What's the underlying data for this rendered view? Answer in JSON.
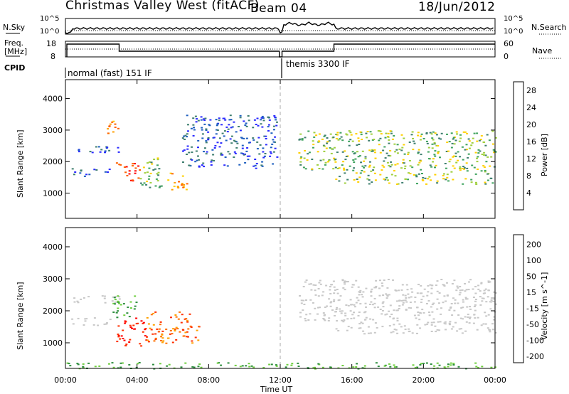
{
  "header": {
    "station": "Christmas Valley West (fitACF)",
    "beam": "Beam 04",
    "date": "18/Jun/2012"
  },
  "left_labels": {
    "nsky": "N.Sky",
    "freq": "Freq.",
    "mhz": "[MHz]",
    "cpid": "CPID",
    "nsky_ticks": [
      "10^5",
      "10^0"
    ],
    "freq_ticks": [
      "18",
      "8"
    ]
  },
  "right_labels": {
    "nsearch": "N.Search",
    "nave": "Nave",
    "nsearch_ticks": [
      "10^5",
      "10^0"
    ],
    "nave_ticks": [
      "60",
      "0"
    ]
  },
  "cpid_modes": [
    {
      "label": "normal (fast) 151 IF",
      "start_hour": 0,
      "end_hour": 12
    },
    {
      "label": "themis 3300 IF",
      "start_hour": 12,
      "end_hour": 24
    }
  ],
  "colors": {
    "power_scale": [
      "#2a2aff",
      "#1f5fbf",
      "#3f7f6f",
      "#3fa35f",
      "#9fcf3f",
      "#ffd000",
      "#ff9f00",
      "#ff6000",
      "#ff0000"
    ],
    "velocity_scale": [
      "#1f1fc8",
      "#1f5fbf",
      "#2f8f3f",
      "#6fcf3f",
      "#c8c8c8",
      "#ffa000",
      "#ff7000",
      "#ff3000",
      "#ff0000"
    ]
  },
  "chart_data": [
    {
      "type": "heatmap",
      "name_panel": "power",
      "xlabel": "Time UT",
      "ylabel": "Slant Range [km]",
      "x_ticks": [
        "00:00",
        "04:00",
        "08:00",
        "12:00",
        "16:00",
        "20:00",
        "00:00"
      ],
      "y_ticks": [
        1000,
        2000,
        3000,
        4000
      ],
      "ylim": [
        200,
        4600
      ],
      "colorbar_label": "Power [dB]",
      "colorbar_ticks": [
        4,
        8,
        12,
        16,
        20,
        24,
        28
      ],
      "colorbar_range": [
        0,
        30
      ],
      "regions": [
        {
          "t0": 0.3,
          "t1": 3.0,
          "r0": 2250,
          "r1": 2500,
          "level": "low"
        },
        {
          "t0": 0.3,
          "t1": 2.5,
          "r0": 1550,
          "r1": 1800,
          "level": "low"
        },
        {
          "t0": 2.3,
          "t1": 2.9,
          "r0": 2500,
          "r1": 3300,
          "level": "high"
        },
        {
          "t0": 2.8,
          "t1": 4.2,
          "r0": 1400,
          "r1": 2000,
          "level": "max"
        },
        {
          "t0": 4.0,
          "t1": 5.4,
          "r0": 1200,
          "r1": 2200,
          "level": "mid"
        },
        {
          "t0": 5.5,
          "t1": 6.8,
          "r0": 1100,
          "r1": 1700,
          "level": "high"
        },
        {
          "t0": 6.5,
          "t1": 11.8,
          "r0": 1800,
          "r1": 3500,
          "level": "low"
        },
        {
          "t0": 13.0,
          "t1": 15.0,
          "r0": 1700,
          "r1": 3000,
          "level": "mid"
        },
        {
          "t0": 15.0,
          "t1": 24.0,
          "r0": 1300,
          "r1": 3000,
          "level": "mid"
        }
      ]
    },
    {
      "type": "heatmap",
      "name_panel": "velocity",
      "xlabel": "Time UT",
      "ylabel": "Slant Range [km]",
      "x_ticks": [
        "00:00",
        "04:00",
        "08:00",
        "12:00",
        "16:00",
        "20:00",
        "00:00"
      ],
      "y_ticks": [
        1000,
        2000,
        3000,
        4000
      ],
      "ylim": [
        200,
        4600
      ],
      "colorbar_label": "Velocity [m s^-1]",
      "colorbar_ticks": [
        200,
        100,
        50,
        15,
        -15,
        -50,
        -100,
        -200
      ],
      "regions": [
        {
          "t0": 0.3,
          "t1": 3.0,
          "r0": 2250,
          "r1": 2500,
          "level": "grey"
        },
        {
          "t0": 0.3,
          "t1": 2.5,
          "r0": 1550,
          "r1": 1800,
          "level": "grey"
        },
        {
          "t0": 2.8,
          "t1": 4.5,
          "r0": 900,
          "r1": 1800,
          "level": "neg_high"
        },
        {
          "t0": 4.5,
          "t1": 7.5,
          "r0": 1000,
          "r1": 2000,
          "level": "neg_mid"
        },
        {
          "t0": 2.5,
          "t1": 4.0,
          "r0": 1800,
          "r1": 2500,
          "level": "pos_low"
        },
        {
          "t0": 13.0,
          "t1": 15.0,
          "r0": 1700,
          "r1": 3000,
          "level": "grey"
        },
        {
          "t0": 15.0,
          "t1": 24.0,
          "r0": 1300,
          "r1": 3000,
          "level": "grey"
        },
        {
          "t0": 0.0,
          "t1": 24.0,
          "r0": 200,
          "r1": 400,
          "level": "pos_low"
        }
      ]
    }
  ]
}
